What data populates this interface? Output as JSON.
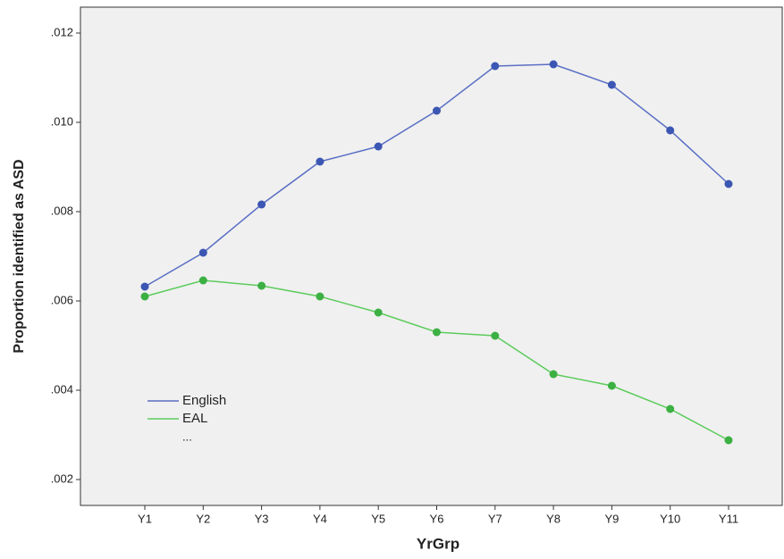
{
  "chart_data": {
    "type": "line",
    "x_label": "YrGrp",
    "y_label": "Proportion identified as ASD",
    "categories": [
      "Y1",
      "Y2",
      "Y3",
      "Y4",
      "Y5",
      "Y6",
      "Y7",
      "Y8",
      "Y9",
      "Y10",
      "Y11"
    ],
    "series": [
      {
        "name": "English",
        "color": "#5a6fc4",
        "marker_color": "#3b56b3",
        "values": [
          0.00632,
          0.00708,
          0.00816,
          0.00912,
          0.00946,
          0.01026,
          0.01126,
          0.0113,
          0.01084,
          0.00982,
          0.00862
        ]
      },
      {
        "name": "EAL",
        "color": "#5ccc5c",
        "marker_color": "#3cb043",
        "values": [
          0.0061,
          0.00646,
          0.00634,
          0.0061,
          0.00574,
          0.0053,
          0.00522,
          0.00436,
          0.0041,
          0.00358,
          0.00288
        ]
      }
    ],
    "legend_note": "...",
    "ylim": [
      0.00142,
      0.01258
    ],
    "yticks": [
      {
        "value": 0.002,
        "label": ".002"
      },
      {
        "value": 0.004,
        "label": ".004"
      },
      {
        "value": 0.006,
        "label": ".006"
      },
      {
        "value": 0.008,
        "label": ".008"
      },
      {
        "value": 0.01,
        "label": ".010"
      },
      {
        "value": 0.012,
        "label": ".012"
      }
    ],
    "grid": false,
    "legend_position": "lower left"
  }
}
